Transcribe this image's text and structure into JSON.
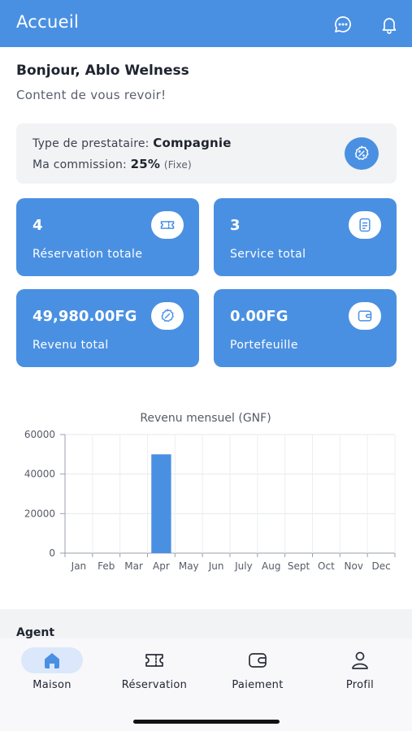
{
  "header": {
    "title": "Accueil",
    "icons": [
      "chat-icon",
      "bell-icon"
    ]
  },
  "greeting": {
    "title": "Bonjour, Ablo Welness",
    "subtitle": "Content de vous revoir!"
  },
  "provider": {
    "type_label": "Type de prestataire:",
    "type_value": "Compagnie",
    "commission_label": "Ma commission:",
    "commission_value": "25%",
    "commission_note": "(Fixe)",
    "icon": "discount-badge-icon"
  },
  "stats": [
    {
      "value": "4",
      "label": "Réservation totale",
      "icon": "ticket-icon"
    },
    {
      "value": "3",
      "label": "Service total",
      "icon": "document-icon"
    },
    {
      "value": "49,980.00FG",
      "label": "Revenu total",
      "icon": "discount-badge-icon"
    },
    {
      "value": "0.00FG",
      "label": "Portefeuille",
      "icon": "wallet-icon"
    }
  ],
  "chart_data": {
    "type": "bar",
    "title": "Revenu mensuel (GNF)",
    "categories": [
      "Jan",
      "Feb",
      "Mar",
      "Apr",
      "May",
      "Jun",
      "July",
      "Aug",
      "Sept",
      "Oct",
      "Nov",
      "Dec"
    ],
    "values": [
      0,
      0,
      0,
      50000,
      0,
      0,
      0,
      0,
      0,
      0,
      0,
      0
    ],
    "ylim": [
      0,
      60000
    ],
    "yticks": [
      0,
      20000,
      40000,
      60000
    ],
    "grid": true,
    "bar_color": "#4a90e2",
    "xlabel": "",
    "ylabel": ""
  },
  "agent_section": {
    "title": "Agent"
  },
  "bottom_nav": [
    {
      "label": "Maison",
      "icon": "home-icon",
      "active": true
    },
    {
      "label": "Réservation",
      "icon": "ticket-icon",
      "active": false
    },
    {
      "label": "Paiement",
      "icon": "wallet-icon",
      "active": false
    },
    {
      "label": "Profil",
      "icon": "user-icon",
      "active": false
    }
  ],
  "colors": {
    "primary": "#4a90e2",
    "card_background": "#f2f3f5",
    "active_nav_pill": "#dbe8fb"
  }
}
